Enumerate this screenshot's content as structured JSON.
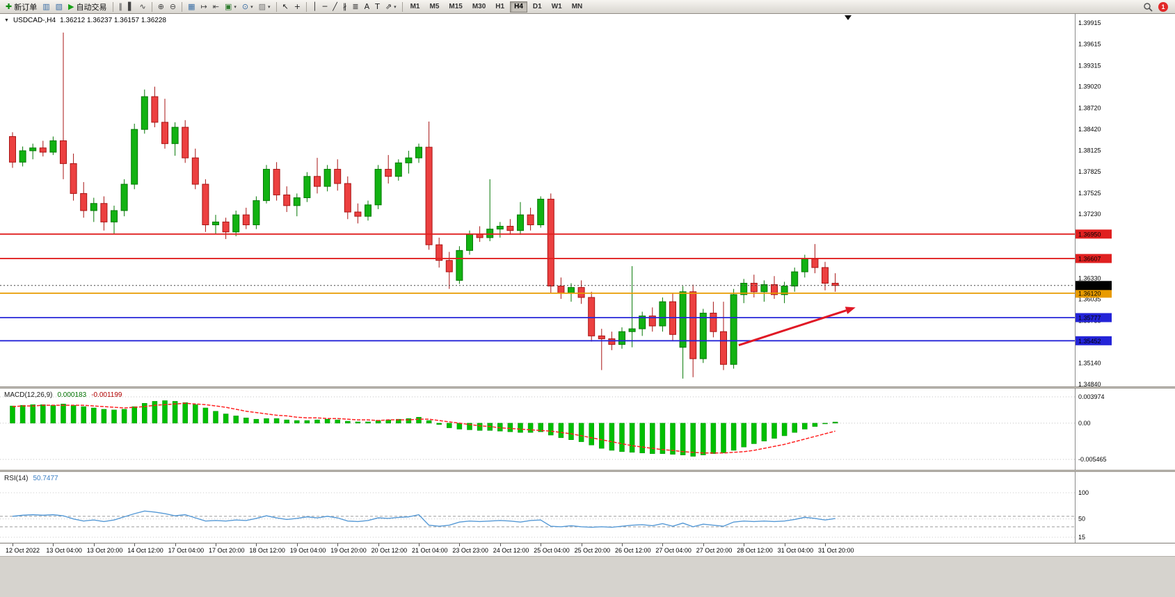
{
  "toolbar": {
    "items": [
      {
        "name": "new-order",
        "glyph": "✚",
        "color": "#0d8a0d",
        "label": "新订单"
      },
      {
        "name": "chart-window",
        "glyph": "▥",
        "color": "#3a6ea5"
      },
      {
        "name": "profiles",
        "glyph": "▧",
        "color": "#3a6ea5"
      },
      {
        "name": "auto-trading",
        "glyph": "▶",
        "color": "#18a018",
        "label": "自动交易"
      },
      {
        "sep": true
      },
      {
        "name": "bars-chart",
        "glyph": "∥",
        "color": "#444444"
      },
      {
        "name": "candles-chart",
        "glyph": "▌",
        "color": "#444444"
      },
      {
        "name": "line-chart",
        "glyph": "∿",
        "color": "#444444"
      },
      {
        "sep": true
      },
      {
        "name": "zoom-in",
        "glyph": "⊕",
        "color": "#444444"
      },
      {
        "name": "zoom-out",
        "glyph": "⊖",
        "color": "#444444"
      },
      {
        "sep": true
      },
      {
        "name": "tile-windows",
        "glyph": "▦",
        "color": "#3a6ea5"
      },
      {
        "name": "auto-scroll",
        "glyph": "↦",
        "color": "#444444"
      },
      {
        "name": "chart-shift",
        "glyph": "⇤",
        "color": "#444444"
      },
      {
        "name": "new-chart",
        "glyph": "▣",
        "color": "#2f7d2f",
        "dropdown": true
      },
      {
        "name": "periods",
        "glyph": "⊙",
        "color": "#3a6ea5",
        "dropdown": true
      },
      {
        "name": "templates",
        "glyph": "▨",
        "color": "#777777",
        "dropdown": true
      },
      {
        "sep": true
      },
      {
        "name": "cursor",
        "glyph": "↖",
        "color": "#222222"
      },
      {
        "name": "crosshair",
        "glyph": "+",
        "color": "#222222"
      },
      {
        "sep": true
      },
      {
        "name": "vertical-line",
        "glyph": "│",
        "color": "#222222"
      },
      {
        "name": "horizontal-line",
        "glyph": "─",
        "color": "#222222"
      },
      {
        "name": "trendline",
        "glyph": "╱",
        "color": "#222222"
      },
      {
        "name": "equidistant-channel",
        "glyph": "∦",
        "color": "#222222"
      },
      {
        "name": "fibonacci",
        "glyph": "≣",
        "color": "#222222"
      },
      {
        "name": "text",
        "glyph": "A",
        "color": "#222222"
      },
      {
        "name": "text-label",
        "glyph": "T",
        "color": "#222222"
      },
      {
        "name": "arrows",
        "glyph": "⇗",
        "color": "#222222",
        "dropdown": true
      },
      {
        "sep": true
      }
    ],
    "timeframes": [
      "M1",
      "M5",
      "M15",
      "M30",
      "H1",
      "H4",
      "D1",
      "W1",
      "MN"
    ],
    "active_timeframe": "H4",
    "notification_count": "1"
  },
  "chart": {
    "symbol_period": "USDCAD-,H4",
    "ohlc_text": "1.36212 1.36237 1.36157 1.36228"
  },
  "macd": {
    "label": "MACD(12,26,9)",
    "value_main": "0.000183",
    "value_signal": "-0.001199",
    "axis_labels": [
      "0.003974",
      "0.00",
      "-0.005465"
    ]
  },
  "rsi": {
    "label": "RSI(14)",
    "value": "50.7477",
    "axis_labels": [
      "100",
      "50",
      "15"
    ]
  },
  "price_axis": {
    "labels": [
      "1.39915",
      "1.39615",
      "1.39315",
      "1.39020",
      "1.38720",
      "1.38420",
      "1.38125",
      "1.37825",
      "1.37525",
      "1.37230",
      "1.36930",
      "1.36630",
      "1.36330",
      "1.36035",
      "1.35735",
      "1.35440",
      "1.35140",
      "1.34840"
    ]
  },
  "chart_data": {
    "type": "candlestick",
    "symbol": "USDCAD-",
    "timeframe": "H4",
    "price_range": [
      1.3484,
      1.39915
    ],
    "x_label_step": 4,
    "x_labels": [
      "12 Oct 2022",
      "13 Oct 04:00",
      "13 Oct 20:00",
      "14 Oct 12:00",
      "17 Oct 04:00",
      "17 Oct 20:00",
      "18 Oct 12:00",
      "19 Oct 04:00",
      "19 Oct 20:00",
      "20 Oct 12:00",
      "21 Oct 04:00",
      "23 Oct 23:00",
      "24 Oct 12:00",
      "25 Oct 04:00",
      "25 Oct 20:00",
      "26 Oct 12:00",
      "27 Oct 04:00",
      "27 Oct 20:00",
      "28 Oct 12:00",
      "31 Oct 04:00",
      "31 Oct 20:00"
    ],
    "candles": [
      [
        1.3832,
        1.3838,
        1.3788,
        1.3796
      ],
      [
        1.3796,
        1.3818,
        1.379,
        1.3812
      ],
      [
        1.3812,
        1.3822,
        1.38,
        1.3816
      ],
      [
        1.3816,
        1.3826,
        1.3804,
        1.381
      ],
      [
        1.381,
        1.3832,
        1.3806,
        1.3826
      ],
      [
        1.3826,
        1.3978,
        1.3772,
        1.3794
      ],
      [
        1.3794,
        1.3808,
        1.3742,
        1.3752
      ],
      [
        1.3752,
        1.3768,
        1.3718,
        1.3728
      ],
      [
        1.3728,
        1.3746,
        1.3712,
        1.3738
      ],
      [
        1.3738,
        1.3748,
        1.37,
        1.3712
      ],
      [
        1.3712,
        1.3735,
        1.3695,
        1.3728
      ],
      [
        1.3728,
        1.3772,
        1.372,
        1.3765
      ],
      [
        1.3765,
        1.385,
        1.3758,
        1.3842
      ],
      [
        1.3842,
        1.3898,
        1.3836,
        1.3888
      ],
      [
        1.3888,
        1.3902,
        1.3845,
        1.3852
      ],
      [
        1.3852,
        1.3885,
        1.3815,
        1.3822
      ],
      [
        1.3822,
        1.3852,
        1.3805,
        1.3845
      ],
      [
        1.3845,
        1.3855,
        1.3795,
        1.3802
      ],
      [
        1.3802,
        1.3815,
        1.3758,
        1.3765
      ],
      [
        1.3765,
        1.3772,
        1.3698,
        1.3708
      ],
      [
        1.3708,
        1.3722,
        1.3695,
        1.3712
      ],
      [
        1.3712,
        1.3718,
        1.3688,
        1.3698
      ],
      [
        1.3698,
        1.3728,
        1.3692,
        1.3722
      ],
      [
        1.3722,
        1.3732,
        1.3702,
        1.3708
      ],
      [
        1.3708,
        1.3748,
        1.3702,
        1.3742
      ],
      [
        1.3742,
        1.3792,
        1.3738,
        1.3786
      ],
      [
        1.3786,
        1.3796,
        1.3742,
        1.375
      ],
      [
        1.375,
        1.3762,
        1.3726,
        1.3735
      ],
      [
        1.3735,
        1.3752,
        1.372,
        1.3746
      ],
      [
        1.3746,
        1.3782,
        1.374,
        1.3776
      ],
      [
        1.3776,
        1.3802,
        1.3752,
        1.3762
      ],
      [
        1.3762,
        1.3792,
        1.3755,
        1.3786
      ],
      [
        1.3786,
        1.38,
        1.3756,
        1.3766
      ],
      [
        1.3766,
        1.3776,
        1.3716,
        1.3726
      ],
      [
        1.3726,
        1.3738,
        1.371,
        1.372
      ],
      [
        1.372,
        1.3742,
        1.3714,
        1.3736
      ],
      [
        1.3736,
        1.3792,
        1.373,
        1.3786
      ],
      [
        1.3786,
        1.3806,
        1.3766,
        1.3776
      ],
      [
        1.3776,
        1.38,
        1.377,
        1.3795
      ],
      [
        1.3795,
        1.3812,
        1.378,
        1.3802
      ],
      [
        1.3802,
        1.3822,
        1.3795,
        1.3817
      ],
      [
        1.3817,
        1.3853,
        1.3673,
        1.368
      ],
      [
        1.368,
        1.369,
        1.3648,
        1.3658
      ],
      [
        1.3658,
        1.367,
        1.3618,
        1.3642
      ],
      [
        1.363,
        1.3678,
        1.3625,
        1.3672
      ],
      [
        1.3672,
        1.37,
        1.3666,
        1.3695
      ],
      [
        1.3695,
        1.3706,
        1.3684,
        1.369
      ],
      [
        1.369,
        1.3772,
        1.3685,
        1.3702
      ],
      [
        1.3702,
        1.3712,
        1.369,
        1.3706
      ],
      [
        1.3706,
        1.3716,
        1.3694,
        1.37
      ],
      [
        1.37,
        1.374,
        1.3694,
        1.3722
      ],
      [
        1.3722,
        1.3732,
        1.37,
        1.3708
      ],
      [
        1.3708,
        1.3748,
        1.3704,
        1.3744
      ],
      [
        1.3744,
        1.3752,
        1.3612,
        1.3622
      ],
      [
        1.3622,
        1.3634,
        1.3604,
        1.3612
      ],
      [
        1.3612,
        1.3626,
        1.36,
        1.362
      ],
      [
        1.362,
        1.363,
        1.3597,
        1.3606
      ],
      [
        1.3606,
        1.3614,
        1.3544,
        1.3552
      ],
      [
        1.3552,
        1.3562,
        1.3504,
        1.3548
      ],
      [
        1.3548,
        1.3558,
        1.3532,
        1.354
      ],
      [
        1.354,
        1.3564,
        1.3534,
        1.3558
      ],
      [
        1.3558,
        1.365,
        1.3536,
        1.3562
      ],
      [
        1.3562,
        1.3586,
        1.3552,
        1.358
      ],
      [
        1.358,
        1.3592,
        1.3558,
        1.3566
      ],
      [
        1.3566,
        1.3606,
        1.3558,
        1.36
      ],
      [
        1.36,
        1.3612,
        1.3546,
        1.3554
      ],
      [
        1.3536,
        1.3622,
        1.3492,
        1.3614
      ],
      [
        1.3614,
        1.3624,
        1.3494,
        1.352
      ],
      [
        1.352,
        1.359,
        1.3514,
        1.3584
      ],
      [
        1.3584,
        1.36,
        1.355,
        1.3558
      ],
      [
        1.3558,
        1.36,
        1.3504,
        1.3512
      ],
      [
        1.3512,
        1.3618,
        1.3506,
        1.361
      ],
      [
        1.361,
        1.3632,
        1.3598,
        1.3626
      ],
      [
        1.3626,
        1.3638,
        1.3606,
        1.3614
      ],
      [
        1.3614,
        1.363,
        1.36,
        1.3624
      ],
      [
        1.3624,
        1.3636,
        1.3604,
        1.361
      ],
      [
        1.361,
        1.3628,
        1.3598,
        1.3622
      ],
      [
        1.3622,
        1.3648,
        1.3614,
        1.3642
      ],
      [
        1.3642,
        1.3666,
        1.3634,
        1.366
      ],
      [
        1.366,
        1.3681,
        1.364,
        1.3648
      ],
      [
        1.3648,
        1.3656,
        1.3616,
        1.3626
      ],
      [
        1.3626,
        1.364,
        1.3614,
        1.36228
      ]
    ],
    "colors": {
      "up": "#12b212",
      "up_border": "#067806",
      "down": "#ec4040",
      "down_border": "#a81414",
      "macd": "#00bf00",
      "macd_border": "#009000",
      "macd_signal": "#ff2222",
      "rsi": "#5599d6",
      "arrow": "#e01825"
    },
    "horizontal_lines": [
      {
        "name": "resistance-1",
        "price": 1.3695,
        "label": "1.36950",
        "color": "#e02020"
      },
      {
        "name": "resistance-2",
        "price": 1.36607,
        "label": "1.36607",
        "color": "#e02020"
      },
      {
        "name": "pivot",
        "price": 1.3612,
        "label": "1.36120",
        "color": "#e89b00"
      },
      {
        "name": "support-1",
        "price": 1.35777,
        "label": "1.35777",
        "color": "#2424d8"
      },
      {
        "name": "support-2",
        "price": 1.35452,
        "label": "1.35452",
        "color": "#2424d8"
      }
    ],
    "current_price": {
      "value": 1.36228,
      "label": "1.36228"
    },
    "trend_arrow": {
      "from_bar": 71.5,
      "from_price": 1.3539,
      "to_bar": 83,
      "to_price": 1.3592
    },
    "macd": {
      "range": [
        -0.005465,
        0.003974
      ],
      "main": [
        0.0026,
        0.0027,
        0.0028,
        0.0028,
        0.0027,
        0.0029,
        0.0027,
        0.0025,
        0.0023,
        0.0021,
        0.002,
        0.0021,
        0.0025,
        0.003,
        0.0033,
        0.0034,
        0.0033,
        0.0031,
        0.0028,
        0.0023,
        0.0018,
        0.0014,
        0.0011,
        0.0008,
        0.0006,
        0.0007,
        0.0007,
        0.0005,
        0.0004,
        0.0004,
        0.0005,
        0.0006,
        0.0005,
        0.0003,
        0.0002,
        0.0002,
        0.0004,
        0.0005,
        0.0006,
        0.0007,
        0.0009,
        0.0004,
        -0.0002,
        -0.0007,
        -0.0009,
        -0.001,
        -0.0011,
        -0.0011,
        -0.0012,
        -0.0013,
        -0.0014,
        -0.0014,
        -0.0013,
        -0.0018,
        -0.0022,
        -0.0025,
        -0.0028,
        -0.0033,
        -0.0038,
        -0.0041,
        -0.0043,
        -0.0044,
        -0.0045,
        -0.0046,
        -0.0046,
        -0.0047,
        -0.0048,
        -0.005,
        -0.0048,
        -0.0046,
        -0.0045,
        -0.0041,
        -0.0036,
        -0.0031,
        -0.0027,
        -0.0023,
        -0.0019,
        -0.0014,
        -0.0009,
        -0.0005,
        -0.0001,
        0.000183
      ],
      "signal": [
        0.0025,
        0.0026,
        0.0026,
        0.0027,
        0.0027,
        0.0027,
        0.0027,
        0.0027,
        0.0026,
        0.0025,
        0.0024,
        0.0023,
        0.0024,
        0.0025,
        0.0027,
        0.0028,
        0.0029,
        0.003,
        0.0029,
        0.0028,
        0.0026,
        0.0024,
        0.0021,
        0.0018,
        0.0016,
        0.0014,
        0.0012,
        0.0011,
        0.0009,
        0.0008,
        0.0008,
        0.0007,
        0.0007,
        0.0006,
        0.0005,
        0.0005,
        0.0004,
        0.0005,
        0.0005,
        0.0005,
        0.0006,
        0.0006,
        0.0004,
        0.0002,
        0.0,
        -0.0002,
        -0.0004,
        -0.0005,
        -0.0007,
        -0.0008,
        -0.0009,
        -0.001,
        -0.0011,
        -0.0012,
        -0.0014,
        -0.0016,
        -0.0019,
        -0.0022,
        -0.0025,
        -0.0028,
        -0.0031,
        -0.0034,
        -0.0036,
        -0.0038,
        -0.004,
        -0.0041,
        -0.0043,
        -0.0044,
        -0.0045,
        -0.0045,
        -0.0045,
        -0.0044,
        -0.0043,
        -0.0041,
        -0.0038,
        -0.0035,
        -0.0032,
        -0.0028,
        -0.0024,
        -0.002,
        -0.0016,
        -0.001199
      ]
    },
    "rsi": {
      "values": [
        55,
        57,
        58,
        57,
        58,
        56,
        50,
        46,
        48,
        45,
        48,
        54,
        60,
        65,
        63,
        60,
        56,
        58,
        52,
        46,
        47,
        46,
        48,
        47,
        51,
        56,
        52,
        49,
        51,
        54,
        52,
        55,
        52,
        46,
        45,
        47,
        52,
        51,
        53,
        54,
        58,
        38,
        36,
        38,
        44,
        46,
        45,
        46,
        47,
        46,
        44,
        47,
        48,
        36,
        35,
        37,
        35,
        34,
        35,
        34,
        36,
        38,
        39,
        37,
        41,
        36,
        42,
        35,
        40,
        38,
        36,
        44,
        46,
        45,
        46,
        45,
        46,
        49,
        53,
        51,
        48,
        50.7477
      ],
      "axis_values": [
        100,
        50,
        15
      ],
      "dashed_levels": [
        55,
        35
      ]
    }
  }
}
